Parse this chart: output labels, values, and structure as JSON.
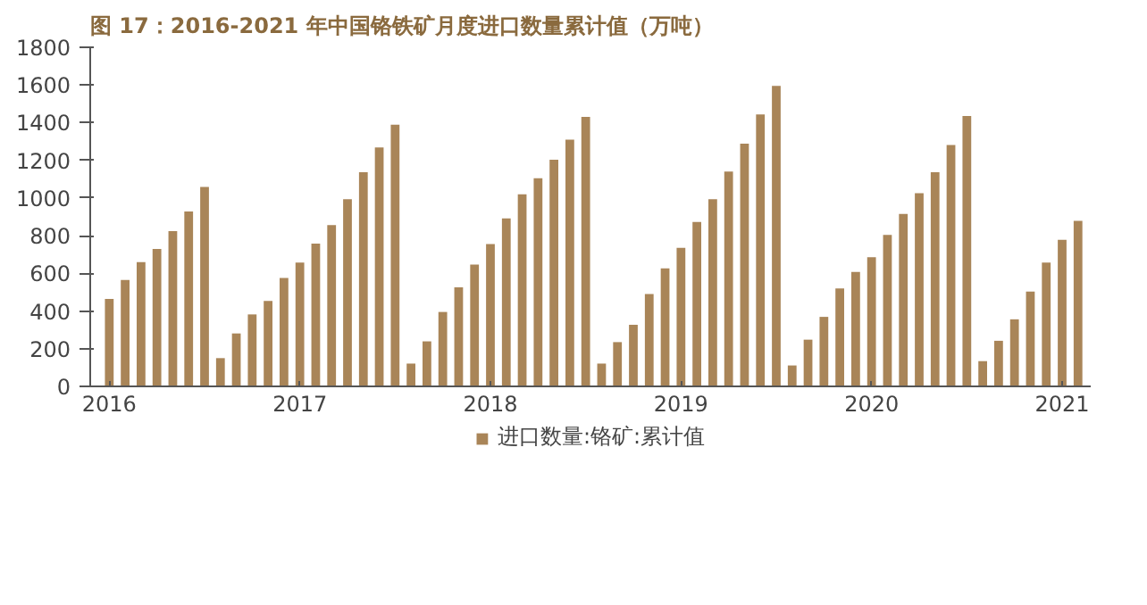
{
  "chart_data": {
    "type": "bar",
    "title": "图 17：2016-2021 年中国铬铁矿月度进口数量累计值（万吨）",
    "categories": [
      "2016",
      null,
      null,
      null,
      null,
      null,
      null,
      null,
      null,
      null,
      null,
      null,
      "2017",
      null,
      null,
      null,
      null,
      null,
      null,
      null,
      null,
      null,
      null,
      null,
      "2018",
      null,
      null,
      null,
      null,
      null,
      null,
      null,
      null,
      null,
      null,
      null,
      "2019",
      null,
      null,
      null,
      null,
      null,
      null,
      null,
      null,
      null,
      null,
      null,
      "2020",
      null,
      null,
      null,
      null,
      null,
      null,
      null,
      null,
      null,
      null,
      null,
      "2021",
      null
    ],
    "series": [
      {
        "name": "进口数量:铬矿:累计值",
        "color": "#a98558",
        "values": [
          464,
          565,
          660,
          729,
          824,
          928,
          1059,
          150,
          281,
          382,
          454,
          575,
          657,
          758,
          856,
          993,
          1137,
          1268,
          1389,
          121,
          239,
          395,
          526,
          647,
          755,
          892,
          1020,
          1105,
          1203,
          1310,
          1431,
          121,
          235,
          327,
          490,
          627,
          735,
          873,
          993,
          1140,
          1288,
          1444,
          1595,
          111,
          248,
          369,
          520,
          608,
          686,
          804,
          915,
          1026,
          1137,
          1281,
          1435,
          134,
          242,
          356,
          503,
          657,
          778,
          879
        ]
      }
    ],
    "ylim": [
      0,
      1800
    ],
    "yticks": [
      0,
      200,
      400,
      600,
      800,
      1000,
      1200,
      1400,
      1600,
      1800
    ],
    "grid": false,
    "legend": "bottom"
  }
}
